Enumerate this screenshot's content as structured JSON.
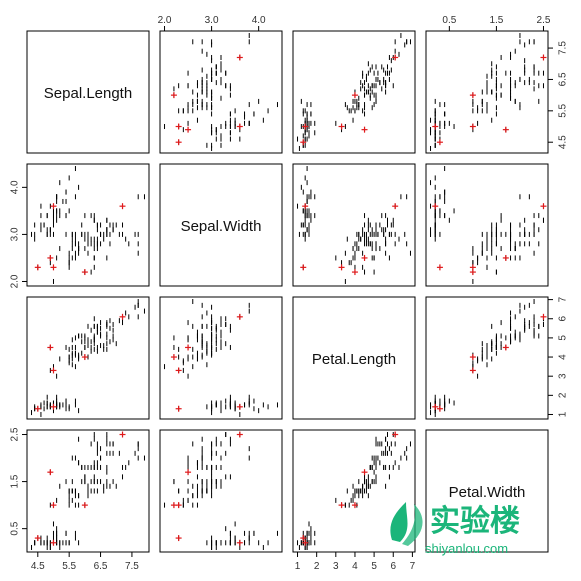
{
  "chart_data": {
    "type": "scatter",
    "subtype": "scatterplot-matrix",
    "title": "",
    "variables": [
      "Sepal.Length",
      "Sepal.Width",
      "Petal.Length",
      "Petal.Width"
    ],
    "axis_ranges": {
      "Sepal.Length": [
        4.3,
        7.9
      ],
      "Sepal.Width": [
        2.0,
        4.4
      ],
      "Petal.Length": [
        1.0,
        6.9
      ],
      "Petal.Width": [
        0.1,
        2.5
      ]
    },
    "ticks": {
      "Sepal.Length": [
        "4.5",
        "5.5",
        "6.5",
        "7.5"
      ],
      "Sepal.Width": [
        "2.0",
        "3.0",
        "4.0"
      ],
      "Petal.Length": [
        "1",
        "2",
        "3",
        "4",
        "5",
        "6",
        "7"
      ],
      "Petal.Width": [
        "0.5",
        "1.5",
        "2.5"
      ]
    },
    "tick_label_placement": {
      "Sepal.Length": [
        "bottom",
        "right"
      ],
      "Sepal.Width": [
        "top",
        "left"
      ],
      "Petal.Length": [
        "bottom",
        "right"
      ],
      "Petal.Width": [
        "top",
        "left"
      ]
    },
    "columns": [
      "Sepal.Length",
      "Sepal.Width",
      "Petal.Length",
      "Petal.Width"
    ],
    "observations": [
      [
        5.1,
        3.5,
        1.4,
        0.2
      ],
      [
        4.9,
        3.0,
        1.4,
        0.2
      ],
      [
        4.7,
        3.2,
        1.3,
        0.2
      ],
      [
        4.6,
        3.1,
        1.5,
        0.2
      ],
      [
        5.0,
        3.6,
        1.4,
        0.2
      ],
      [
        5.4,
        3.9,
        1.7,
        0.4
      ],
      [
        4.6,
        3.4,
        1.4,
        0.3
      ],
      [
        5.0,
        3.4,
        1.5,
        0.2
      ],
      [
        4.4,
        2.9,
        1.4,
        0.2
      ],
      [
        4.9,
        3.1,
        1.5,
        0.1
      ],
      [
        5.4,
        3.7,
        1.5,
        0.2
      ],
      [
        4.8,
        3.4,
        1.6,
        0.2
      ],
      [
        4.8,
        3.0,
        1.4,
        0.1
      ],
      [
        4.3,
        3.0,
        1.1,
        0.1
      ],
      [
        5.8,
        4.0,
        1.2,
        0.2
      ],
      [
        5.7,
        4.4,
        1.5,
        0.4
      ],
      [
        5.4,
        3.9,
        1.3,
        0.4
      ],
      [
        5.1,
        3.5,
        1.4,
        0.3
      ],
      [
        5.7,
        3.8,
        1.7,
        0.3
      ],
      [
        5.1,
        3.8,
        1.5,
        0.3
      ],
      [
        5.4,
        3.4,
        1.7,
        0.2
      ],
      [
        5.1,
        3.7,
        1.5,
        0.4
      ],
      [
        4.6,
        3.6,
        1.0,
        0.2
      ],
      [
        5.1,
        3.3,
        1.7,
        0.5
      ],
      [
        4.8,
        3.4,
        1.9,
        0.2
      ],
      [
        5.0,
        3.0,
        1.6,
        0.2
      ],
      [
        5.0,
        3.4,
        1.6,
        0.4
      ],
      [
        5.2,
        3.5,
        1.5,
        0.2
      ],
      [
        5.2,
        3.4,
        1.4,
        0.2
      ],
      [
        4.7,
        3.2,
        1.6,
        0.2
      ],
      [
        4.8,
        3.1,
        1.6,
        0.2
      ],
      [
        5.4,
        3.4,
        1.5,
        0.4
      ],
      [
        5.2,
        4.1,
        1.5,
        0.1
      ],
      [
        5.5,
        4.2,
        1.4,
        0.2
      ],
      [
        4.9,
        3.1,
        1.5,
        0.2
      ],
      [
        5.0,
        3.2,
        1.2,
        0.2
      ],
      [
        5.5,
        3.5,
        1.3,
        0.2
      ],
      [
        4.9,
        3.6,
        1.4,
        0.1
      ],
      [
        4.4,
        3.0,
        1.3,
        0.2
      ],
      [
        5.1,
        3.4,
        1.5,
        0.2
      ],
      [
        5.0,
        3.5,
        1.3,
        0.3
      ],
      [
        4.5,
        2.3,
        1.3,
        0.3
      ],
      [
        4.4,
        3.2,
        1.3,
        0.2
      ],
      [
        5.0,
        3.5,
        1.6,
        0.6
      ],
      [
        5.1,
        3.8,
        1.9,
        0.4
      ],
      [
        4.8,
        3.0,
        1.4,
        0.3
      ],
      [
        5.1,
        3.8,
        1.6,
        0.2
      ],
      [
        4.6,
        3.2,
        1.4,
        0.2
      ],
      [
        5.3,
        3.7,
        1.5,
        0.2
      ],
      [
        5.0,
        3.3,
        1.4,
        0.2
      ],
      [
        7.0,
        3.2,
        4.7,
        1.4
      ],
      [
        6.4,
        3.2,
        4.5,
        1.5
      ],
      [
        6.9,
        3.1,
        4.9,
        1.5
      ],
      [
        5.5,
        2.3,
        4.0,
        1.3
      ],
      [
        6.5,
        2.8,
        4.6,
        1.5
      ],
      [
        5.7,
        2.8,
        4.5,
        1.3
      ],
      [
        6.3,
        3.3,
        4.7,
        1.6
      ],
      [
        4.9,
        2.4,
        3.3,
        1.0
      ],
      [
        6.6,
        2.9,
        4.6,
        1.3
      ],
      [
        5.2,
        2.7,
        3.9,
        1.4
      ],
      [
        5.0,
        2.0,
        3.5,
        1.0
      ],
      [
        5.9,
        3.0,
        4.2,
        1.5
      ],
      [
        6.0,
        2.2,
        4.0,
        1.0
      ],
      [
        6.1,
        2.9,
        4.7,
        1.4
      ],
      [
        5.6,
        2.9,
        3.6,
        1.3
      ],
      [
        6.7,
        3.1,
        4.4,
        1.4
      ],
      [
        5.6,
        3.0,
        4.5,
        1.5
      ],
      [
        5.8,
        2.7,
        4.1,
        1.0
      ],
      [
        6.2,
        2.2,
        4.5,
        1.5
      ],
      [
        5.6,
        2.5,
        3.9,
        1.1
      ],
      [
        5.9,
        3.2,
        4.8,
        1.8
      ],
      [
        6.1,
        2.8,
        4.0,
        1.3
      ],
      [
        6.3,
        2.5,
        4.9,
        1.5
      ],
      [
        6.1,
        2.8,
        4.7,
        1.2
      ],
      [
        6.4,
        2.9,
        4.3,
        1.3
      ],
      [
        6.6,
        3.0,
        4.4,
        1.4
      ],
      [
        6.8,
        2.8,
        4.8,
        1.4
      ],
      [
        6.7,
        3.0,
        5.0,
        1.7
      ],
      [
        6.0,
        2.9,
        4.5,
        1.5
      ],
      [
        5.7,
        2.6,
        3.5,
        1.0
      ],
      [
        5.5,
        2.4,
        3.8,
        1.1
      ],
      [
        5.5,
        2.4,
        3.7,
        1.0
      ],
      [
        5.8,
        2.7,
        3.9,
        1.2
      ],
      [
        6.0,
        2.7,
        5.1,
        1.6
      ],
      [
        5.4,
        3.0,
        4.5,
        1.5
      ],
      [
        6.0,
        3.4,
        4.5,
        1.6
      ],
      [
        6.7,
        3.1,
        4.7,
        1.5
      ],
      [
        6.3,
        2.3,
        4.4,
        1.3
      ],
      [
        5.6,
        3.0,
        4.1,
        1.3
      ],
      [
        5.5,
        2.5,
        4.0,
        1.3
      ],
      [
        5.5,
        2.6,
        4.4,
        1.2
      ],
      [
        6.1,
        3.0,
        4.6,
        1.4
      ],
      [
        5.8,
        2.6,
        4.0,
        1.2
      ],
      [
        5.0,
        2.3,
        3.3,
        1.0
      ],
      [
        5.6,
        2.7,
        4.2,
        1.3
      ],
      [
        5.7,
        3.0,
        4.2,
        1.2
      ],
      [
        5.7,
        2.9,
        4.2,
        1.3
      ],
      [
        6.2,
        2.9,
        4.3,
        1.3
      ],
      [
        5.1,
        2.5,
        3.0,
        1.1
      ],
      [
        5.7,
        2.8,
        4.1,
        1.3
      ],
      [
        6.3,
        3.3,
        6.0,
        2.5
      ],
      [
        5.8,
        2.7,
        5.1,
        1.9
      ],
      [
        7.1,
        3.0,
        5.9,
        2.1
      ],
      [
        6.3,
        2.9,
        5.6,
        1.8
      ],
      [
        6.5,
        3.0,
        5.8,
        2.2
      ],
      [
        7.6,
        3.0,
        6.6,
        2.1
      ],
      [
        4.9,
        2.5,
        4.5,
        1.7
      ],
      [
        7.3,
        2.9,
        6.3,
        1.8
      ],
      [
        6.7,
        2.5,
        5.8,
        1.8
      ],
      [
        7.2,
        3.6,
        6.1,
        2.5
      ],
      [
        6.5,
        3.2,
        5.1,
        2.0
      ],
      [
        6.4,
        2.7,
        5.3,
        1.9
      ],
      [
        6.8,
        3.0,
        5.5,
        2.1
      ],
      [
        5.7,
        2.5,
        5.0,
        2.0
      ],
      [
        5.8,
        2.8,
        5.1,
        2.4
      ],
      [
        6.4,
        3.2,
        5.3,
        2.3
      ],
      [
        6.5,
        3.0,
        5.5,
        1.8
      ],
      [
        7.7,
        3.8,
        6.7,
        2.2
      ],
      [
        7.7,
        2.6,
        6.9,
        2.3
      ],
      [
        6.0,
        2.2,
        5.0,
        1.5
      ],
      [
        6.9,
        3.2,
        5.7,
        2.3
      ],
      [
        5.6,
        2.8,
        4.9,
        2.0
      ],
      [
        7.7,
        2.8,
        6.7,
        2.0
      ],
      [
        6.3,
        2.7,
        4.9,
        1.8
      ],
      [
        6.7,
        3.3,
        5.7,
        2.1
      ],
      [
        7.2,
        3.2,
        6.0,
        1.8
      ],
      [
        6.2,
        2.8,
        4.8,
        1.8
      ],
      [
        6.1,
        3.0,
        4.9,
        1.8
      ],
      [
        6.4,
        2.8,
        5.6,
        2.1
      ],
      [
        7.2,
        3.0,
        5.8,
        1.6
      ],
      [
        7.4,
        2.8,
        6.1,
        1.9
      ],
      [
        7.9,
        3.8,
        6.4,
        2.0
      ],
      [
        6.4,
        2.8,
        5.6,
        2.2
      ],
      [
        6.3,
        2.8,
        5.1,
        1.5
      ],
      [
        6.1,
        2.6,
        5.6,
        1.4
      ],
      [
        7.7,
        3.0,
        6.1,
        2.3
      ],
      [
        6.3,
        3.4,
        5.6,
        2.4
      ],
      [
        6.4,
        3.1,
        5.5,
        1.8
      ],
      [
        6.0,
        3.0,
        4.8,
        1.8
      ],
      [
        6.9,
        3.1,
        5.4,
        2.1
      ],
      [
        6.7,
        3.1,
        5.6,
        2.4
      ],
      [
        6.9,
        3.1,
        5.1,
        2.3
      ],
      [
        5.8,
        2.7,
        5.1,
        1.9
      ],
      [
        6.8,
        3.2,
        5.9,
        2.3
      ],
      [
        6.7,
        3.3,
        5.7,
        2.5
      ],
      [
        6.7,
        3.0,
        5.2,
        2.3
      ],
      [
        6.3,
        2.5,
        5.0,
        1.9
      ],
      [
        6.5,
        3.0,
        5.2,
        2.0
      ],
      [
        6.2,
        3.4,
        5.4,
        2.3
      ],
      [
        5.9,
        3.0,
        5.1,
        1.8
      ]
    ],
    "highlighted_points": [
      [
        4.5,
        2.3,
        1.3,
        0.3
      ],
      [
        5.0,
        3.6,
        1.4,
        0.2
      ],
      [
        5.0,
        2.3,
        3.3,
        1.0
      ],
      [
        6.0,
        2.2,
        4.0,
        1.0
      ],
      [
        4.9,
        2.5,
        4.5,
        1.7
      ],
      [
        7.2,
        3.6,
        6.1,
        2.5
      ]
    ],
    "point_marker": "|",
    "highlight_marker": "+",
    "point_color": "#000000",
    "highlight_color": "#e0191b",
    "grid": false,
    "legend": "none"
  },
  "watermark": {
    "text": "实验楼",
    "subtext": "shiyanlou.com",
    "color": "#1bb57a"
  }
}
